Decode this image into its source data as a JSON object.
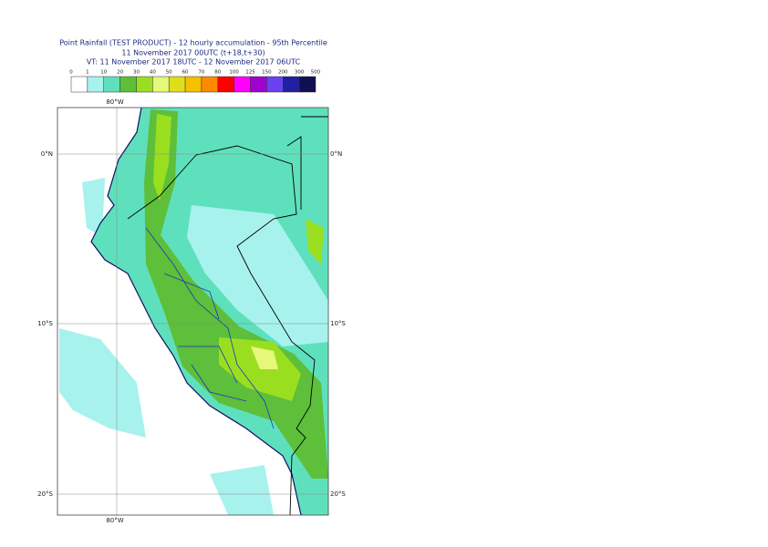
{
  "header": {
    "title": "Point Rainfall (TEST PRODUCT) - 12 hourly accumulation - 95th Percentile",
    "base_time": "11 November 2017 00UTC (t+18,t+30)",
    "valid_time": "VT: 11 November 2017 18UTC - 12 November 2017 06UTC"
  },
  "legend": {
    "thresholds": [
      0,
      1,
      10,
      20,
      30,
      40,
      50,
      60,
      70,
      80,
      100,
      125,
      150,
      200,
      300,
      500
    ],
    "colors": [
      "#ffffff",
      "#a8f2ee",
      "#5fe0bd",
      "#5dbf3a",
      "#9adf1f",
      "#e6f87a",
      "#dede1c",
      "#f5c000",
      "#ff8a00",
      "#ff0000",
      "#ff00ff",
      "#a000d0",
      "#6a40f0",
      "#2020a0",
      "#101050"
    ]
  },
  "map": {
    "lon_labels": [
      "80°W"
    ],
    "lat_labels": [
      "0°N",
      "10°S",
      "20°S"
    ]
  }
}
